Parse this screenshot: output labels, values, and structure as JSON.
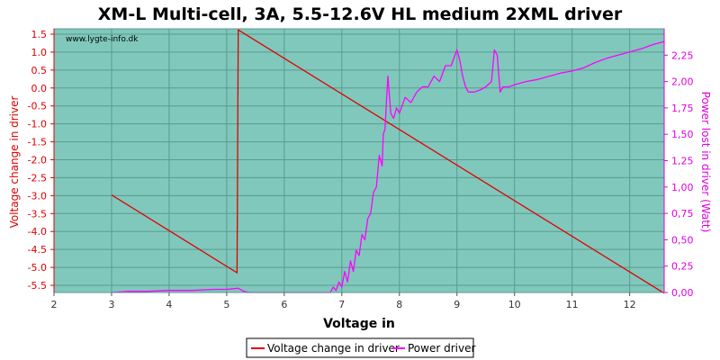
{
  "chart_data": {
    "type": "line",
    "title": "XM-L Multi-cell, 3A, 5.5-12.6V HL medium 2XML driver",
    "watermark": "www.lygte-info.dk",
    "xlabel": "Voltage in",
    "ylabel_left": "Voltage change in driver",
    "ylabel_right": "Power lost in driver (Watt)",
    "xlim": [
      2,
      12.6
    ],
    "ylim_left": [
      -5.7,
      1.65
    ],
    "ylim_right": [
      0,
      2.5
    ],
    "x_ticks": [
      "2",
      "3",
      "4",
      "5",
      "6",
      "7",
      "8",
      "9",
      "10",
      "11",
      "12"
    ],
    "y_left_ticks": [
      "1.5",
      "1.0",
      "0.5",
      "0.0",
      "-0.5",
      "-1.0",
      "-1.5",
      "-2.0",
      "-2.5",
      "-3.0",
      "-3.5",
      "-4.0",
      "-4.5",
      "-5.0",
      "-5.5"
    ],
    "y_right_ticks": [
      "2,25",
      "2,00",
      "1,75",
      "1,50",
      "1,25",
      "1,00",
      "0,75",
      "0,50",
      "0,25",
      "0,00"
    ],
    "colors": {
      "plot_bg": "#80c8bc",
      "grid": "#5a9a90",
      "voltage": "#e00000",
      "power": "#ff00ff"
    },
    "legend": [
      {
        "label": "Voltage change in driver"
      },
      {
        "label": "Power driver"
      }
    ],
    "series": [
      {
        "name": "Voltage change in driver",
        "axis": "left",
        "x": [
          3.0,
          5.18,
          5.2,
          12.6
        ],
        "y": [
          -2.98,
          -5.15,
          1.62,
          -5.72
        ]
      },
      {
        "name": "Power driver",
        "axis": "right",
        "x": [
          3.0,
          3.3,
          3.6,
          4.0,
          4.4,
          4.8,
          5.0,
          5.2,
          5.3,
          5.4,
          6.8,
          6.85,
          6.9,
          6.95,
          7.0,
          7.05,
          7.1,
          7.15,
          7.2,
          7.25,
          7.3,
          7.35,
          7.4,
          7.45,
          7.5,
          7.55,
          7.6,
          7.65,
          7.7,
          7.72,
          7.75,
          7.78,
          7.8,
          7.85,
          7.9,
          7.95,
          8.0,
          8.1,
          8.2,
          8.3,
          8.4,
          8.5,
          8.6,
          8.7,
          8.8,
          8.9,
          9.0,
          9.05,
          9.1,
          9.15,
          9.2,
          9.3,
          9.4,
          9.5,
          9.6,
          9.65,
          9.7,
          9.75,
          9.8,
          9.9,
          10.0,
          10.2,
          10.4,
          10.6,
          10.8,
          11.0,
          11.2,
          11.4,
          11.6,
          11.8,
          12.0,
          12.2,
          12.4,
          12.6
        ],
        "y": [
          0.0,
          0.01,
          0.01,
          0.02,
          0.02,
          0.03,
          0.03,
          0.04,
          0.01,
          0.0,
          0.0,
          0.05,
          0.02,
          0.1,
          0.05,
          0.2,
          0.1,
          0.3,
          0.2,
          0.4,
          0.35,
          0.55,
          0.5,
          0.7,
          0.75,
          0.95,
          1.0,
          1.3,
          1.2,
          1.5,
          1.55,
          1.85,
          2.05,
          1.7,
          1.65,
          1.75,
          1.7,
          1.85,
          1.8,
          1.9,
          1.95,
          1.95,
          2.05,
          2.0,
          2.15,
          2.15,
          2.3,
          2.2,
          2.05,
          1.95,
          1.9,
          1.9,
          1.92,
          1.95,
          2.0,
          2.3,
          2.25,
          1.9,
          1.95,
          1.95,
          1.97,
          2.0,
          2.02,
          2.05,
          2.08,
          2.1,
          2.13,
          2.18,
          2.22,
          2.25,
          2.28,
          2.31,
          2.35,
          2.38
        ]
      }
    ]
  }
}
